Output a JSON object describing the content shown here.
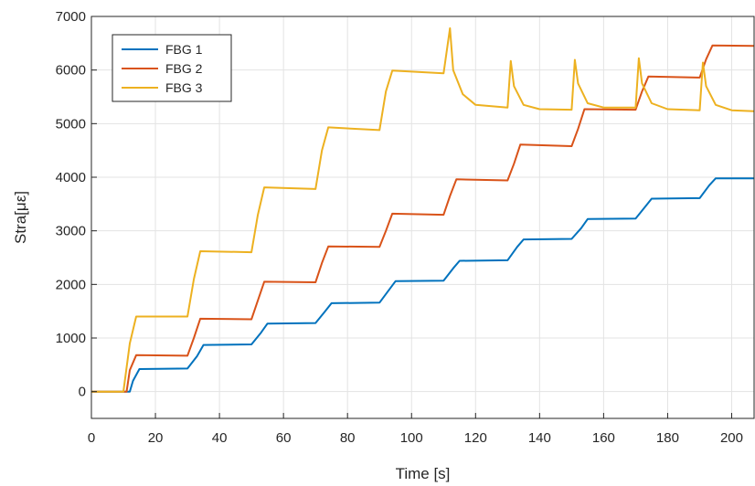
{
  "chart_data": {
    "type": "line",
    "title": "",
    "xlabel": "Time [s]",
    "ylabel": "Stra[με]",
    "xlim": [
      0,
      207
    ],
    "ylim": [
      -500,
      7000
    ],
    "xticks": [
      0,
      20,
      40,
      60,
      80,
      100,
      120,
      140,
      160,
      180,
      200
    ],
    "yticks": [
      0,
      1000,
      2000,
      3000,
      4000,
      5000,
      6000,
      7000
    ],
    "grid": true,
    "legend_position": "top-left",
    "series": [
      {
        "name": "FBG 1",
        "color": "#0072BD",
        "points": [
          [
            0,
            0
          ],
          [
            12,
            0
          ],
          [
            13,
            200
          ],
          [
            15,
            420
          ],
          [
            30,
            430
          ],
          [
            33,
            660
          ],
          [
            35,
            870
          ],
          [
            50,
            880
          ],
          [
            53,
            1100
          ],
          [
            55,
            1270
          ],
          [
            70,
            1280
          ],
          [
            73,
            1500
          ],
          [
            75,
            1650
          ],
          [
            90,
            1660
          ],
          [
            93,
            1900
          ],
          [
            95,
            2060
          ],
          [
            110,
            2070
          ],
          [
            113,
            2300
          ],
          [
            115,
            2440
          ],
          [
            130,
            2450
          ],
          [
            133,
            2700
          ],
          [
            135,
            2840
          ],
          [
            150,
            2850
          ],
          [
            153,
            3050
          ],
          [
            155,
            3220
          ],
          [
            170,
            3230
          ],
          [
            173,
            3450
          ],
          [
            175,
            3600
          ],
          [
            190,
            3610
          ],
          [
            193,
            3850
          ],
          [
            195,
            3980
          ],
          [
            207,
            3980
          ]
        ]
      },
      {
        "name": "FBG 2",
        "color": "#D95319",
        "points": [
          [
            0,
            0
          ],
          [
            11,
            0
          ],
          [
            12,
            400
          ],
          [
            14,
            680
          ],
          [
            30,
            670
          ],
          [
            32,
            1000
          ],
          [
            34,
            1360
          ],
          [
            50,
            1350
          ],
          [
            52,
            1700
          ],
          [
            54,
            2050
          ],
          [
            70,
            2040
          ],
          [
            72,
            2400
          ],
          [
            74,
            2710
          ],
          [
            90,
            2700
          ],
          [
            92,
            3000
          ],
          [
            94,
            3320
          ],
          [
            110,
            3300
          ],
          [
            112,
            3650
          ],
          [
            114,
            3960
          ],
          [
            130,
            3940
          ],
          [
            132,
            4250
          ],
          [
            134,
            4610
          ],
          [
            150,
            4580
          ],
          [
            152,
            4900
          ],
          [
            154,
            5270
          ],
          [
            170,
            5260
          ],
          [
            172,
            5600
          ],
          [
            174,
            5880
          ],
          [
            190,
            5860
          ],
          [
            192,
            6200
          ],
          [
            194,
            6460
          ],
          [
            207,
            6450
          ]
        ]
      },
      {
        "name": "FBG 3",
        "color": "#EDB120",
        "points": [
          [
            0,
            0
          ],
          [
            10,
            0
          ],
          [
            12,
            900
          ],
          [
            14,
            1400
          ],
          [
            30,
            1400
          ],
          [
            32,
            2100
          ],
          [
            34,
            2620
          ],
          [
            50,
            2600
          ],
          [
            52,
            3300
          ],
          [
            54,
            3810
          ],
          [
            70,
            3780
          ],
          [
            72,
            4500
          ],
          [
            74,
            4930
          ],
          [
            90,
            4880
          ],
          [
            92,
            5600
          ],
          [
            94,
            5990
          ],
          [
            110,
            5940
          ],
          [
            112,
            6780
          ],
          [
            113,
            6000
          ],
          [
            116,
            5550
          ],
          [
            120,
            5350
          ],
          [
            130,
            5300
          ],
          [
            131,
            6170
          ],
          [
            132,
            5700
          ],
          [
            135,
            5350
          ],
          [
            140,
            5270
          ],
          [
            150,
            5260
          ],
          [
            151,
            6190
          ],
          [
            152,
            5750
          ],
          [
            155,
            5380
          ],
          [
            160,
            5300
          ],
          [
            170,
            5300
          ],
          [
            171,
            6220
          ],
          [
            172,
            5750
          ],
          [
            175,
            5380
          ],
          [
            180,
            5270
          ],
          [
            190,
            5250
          ],
          [
            191,
            6140
          ],
          [
            192,
            5700
          ],
          [
            195,
            5350
          ],
          [
            200,
            5250
          ],
          [
            207,
            5230
          ]
        ]
      }
    ]
  }
}
